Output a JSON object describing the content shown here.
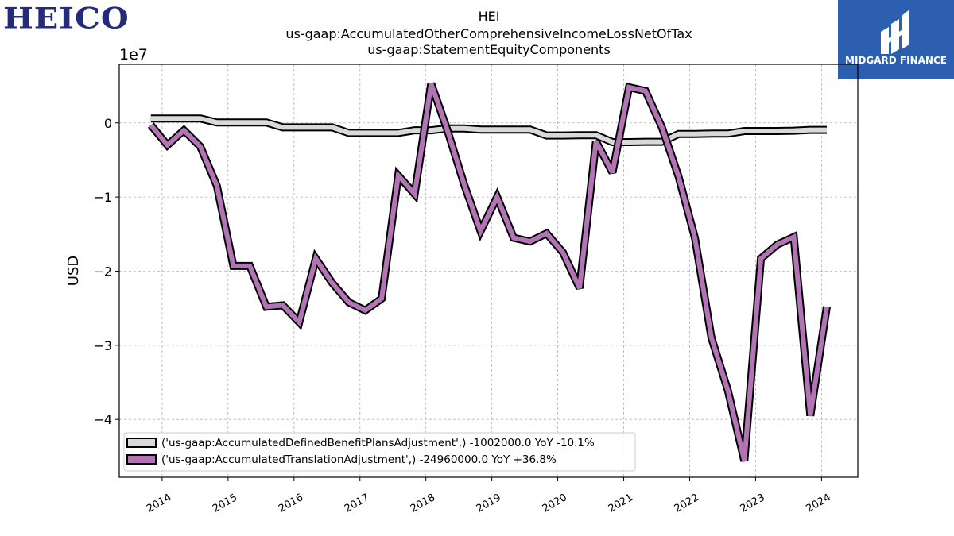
{
  "logos": {
    "left_text": "HEICO",
    "right_text": "MIDGARD FINANCE"
  },
  "chart_data": {
    "type": "line",
    "title_lines": [
      "HEI",
      "us-gaap:AccumulatedOtherComprehensiveIncomeLossNetOfTax",
      "us-gaap:StatementEquityComponents"
    ],
    "ylabel": "USD",
    "xlabel": "",
    "y_offset_label": "1e7",
    "y_unit_scale": 10000000,
    "ylim": [
      -47800000,
      7900000
    ],
    "xlim": [
      2013.35,
      2024.55
    ],
    "y_ticks": [
      0,
      -10000000,
      -20000000,
      -30000000,
      -40000000
    ],
    "y_tick_labels": [
      "0",
      "−1",
      "−2",
      "−3",
      "−4"
    ],
    "x_ticks": [
      2014,
      2015,
      2016,
      2017,
      2018,
      2019,
      2020,
      2021,
      2022,
      2023,
      2024
    ],
    "x_tick_labels": [
      "2014",
      "2015",
      "2016",
      "2017",
      "2018",
      "2019",
      "2020",
      "2021",
      "2022",
      "2023",
      "2024"
    ],
    "grid": true,
    "legend_position": "lower-left",
    "series": [
      {
        "name": "('us-gaap:AccumulatedDefinedBenefitPlansAdjustment',) -1002000.0 YoY -10.1%",
        "color": "#d9d9d9",
        "x": [
          2013.83,
          2014.08,
          2014.33,
          2014.58,
          2014.83,
          2015.08,
          2015.33,
          2015.58,
          2015.83,
          2016.08,
          2016.33,
          2016.58,
          2016.83,
          2017.08,
          2017.33,
          2017.58,
          2017.83,
          2018.08,
          2018.33,
          2018.58,
          2018.83,
          2019.08,
          2019.33,
          2019.58,
          2019.83,
          2020.08,
          2020.33,
          2020.58,
          2020.83,
          2021.08,
          2021.33,
          2021.58,
          2021.83,
          2022.08,
          2022.33,
          2022.58,
          2022.83,
          2023.08,
          2023.33,
          2023.58,
          2023.83,
          2024.08
        ],
        "values": [
          600000,
          600000,
          600000,
          600000,
          50000,
          50000,
          50000,
          50000,
          -600000,
          -600000,
          -600000,
          -600000,
          -1350000,
          -1350000,
          -1350000,
          -1350000,
          -1000000,
          -1000000,
          -750000,
          -750000,
          -900000,
          -900000,
          -900000,
          -900000,
          -1700000,
          -1700000,
          -1650000,
          -1650000,
          -2600000,
          -2600000,
          -2550000,
          -2550000,
          -1500000,
          -1500000,
          -1450000,
          -1450000,
          -1100000,
          -1100000,
          -1100000,
          -1050000,
          -950000,
          -950000
        ]
      },
      {
        "name": "('us-gaap:AccumulatedTranslationAdjustment',) -24960000.0 YoY +36.8%",
        "color": "#b274b4",
        "x": [
          2013.83,
          2014.08,
          2014.33,
          2014.58,
          2014.83,
          2015.08,
          2015.33,
          2015.58,
          2015.83,
          2016.08,
          2016.33,
          2016.58,
          2016.83,
          2017.08,
          2017.33,
          2017.58,
          2017.83,
          2018.08,
          2018.33,
          2018.58,
          2018.83,
          2019.08,
          2019.33,
          2019.58,
          2019.83,
          2020.08,
          2020.33,
          2020.58,
          2020.83,
          2021.08,
          2021.33,
          2021.58,
          2021.83,
          2022.08,
          2022.33,
          2022.58,
          2022.83,
          2023.08,
          2023.33,
          2023.58,
          2023.83,
          2024.08
        ],
        "values": [
          -300000,
          -3000000,
          -1000000,
          -3200000,
          -8500000,
          -19300000,
          -19300000,
          -24800000,
          -24600000,
          -26900000,
          -18300000,
          -21600000,
          -24200000,
          -25300000,
          -23700000,
          -7100000,
          -9600000,
          5300000,
          -1100000,
          -8300000,
          -14600000,
          -10000000,
          -15500000,
          -16000000,
          -14900000,
          -17500000,
          -22300000,
          -2500000,
          -6700000,
          4800000,
          4300000,
          -600000,
          -7200000,
          -15500000,
          -29000000,
          -36100000,
          -45600000,
          -18300000,
          -16400000,
          -15400000,
          -39500000,
          -24800000
        ]
      }
    ]
  }
}
